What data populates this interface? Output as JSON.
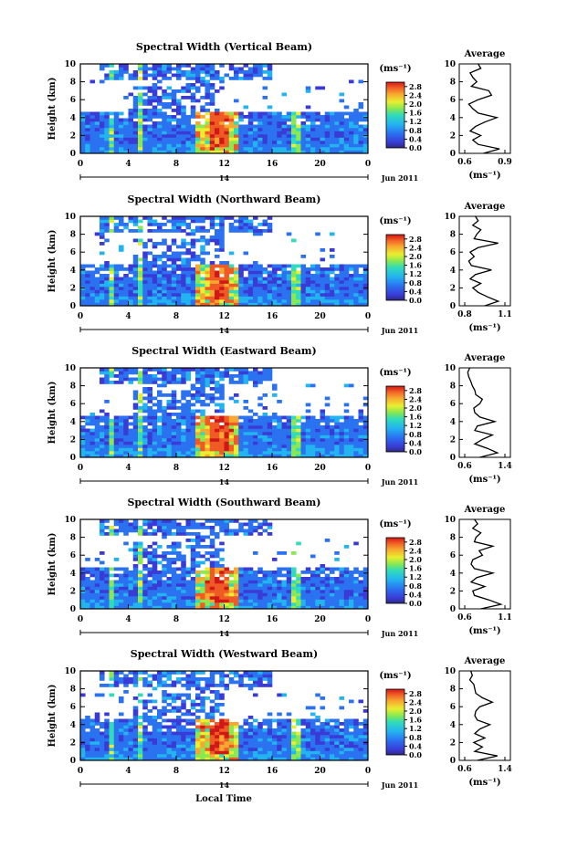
{
  "figure": {
    "x_axis_label": "Local Time",
    "date_label": "Jun 2011",
    "day_label": "14",
    "y_axis_label": "Height (km)",
    "colorbar_unit": "(ms⁻¹)",
    "average_title": "Average",
    "average_unit": "(ms⁻¹)"
  },
  "chart_data": [
    {
      "type": "heatmap",
      "title": "Spectral Width (Vertical Beam)",
      "xlabel": "Local Time",
      "ylabel": "Height (km)",
      "xlim": [
        0,
        24
      ],
      "ylim": [
        0,
        10
      ],
      "x_ticks": [
        "0",
        "4",
        "8",
        "12",
        "16",
        "20",
        "0"
      ],
      "y_ticks": [
        "0",
        "2",
        "4",
        "6",
        "8",
        "10"
      ],
      "colorbar": {
        "min": 0.0,
        "max": 3.0,
        "ticks": [
          "0.0",
          "0.4",
          "0.8",
          "1.2",
          "1.6",
          "2.0",
          "2.4",
          "2.8"
        ]
      },
      "average_profile": {
        "xlim": [
          0.6,
          0.9
        ],
        "x_ticks": [
          "0.6",
          "0.9"
        ],
        "heights": [
          0,
          0.5,
          1,
          1.5,
          2,
          2.5,
          3,
          3.5,
          4,
          4.5,
          5,
          5.5,
          6,
          6.5,
          7,
          7.5,
          8,
          8.5,
          9,
          9.5,
          10
        ],
        "values": [
          0.74,
          0.86,
          0.7,
          0.66,
          0.72,
          0.64,
          0.68,
          0.75,
          0.84,
          0.7,
          0.66,
          0.63,
          0.7,
          0.8,
          0.78,
          0.65,
          0.69,
          0.66,
          0.64,
          0.72,
          0.7
        ]
      }
    },
    {
      "type": "heatmap",
      "title": "Spectral Width (Northward Beam)",
      "xlabel": "Local Time",
      "ylabel": "Height (km)",
      "xlim": [
        0,
        24
      ],
      "ylim": [
        0,
        10
      ],
      "x_ticks": [
        "0",
        "4",
        "8",
        "12",
        "16",
        "20",
        "0"
      ],
      "y_ticks": [
        "0",
        "2",
        "4",
        "6",
        "8",
        "10"
      ],
      "colorbar": {
        "min": 0.0,
        "max": 3.0,
        "ticks": [
          "0.0",
          "0.4",
          "0.8",
          "1.2",
          "1.6",
          "2.0",
          "2.4",
          "2.8"
        ]
      },
      "average_profile": {
        "xlim": [
          0.8,
          1.1
        ],
        "x_ticks": [
          "0.8",
          "1.1"
        ],
        "heights": [
          0,
          0.5,
          1,
          1.5,
          2,
          2.5,
          3,
          3.5,
          4,
          4.5,
          5,
          5.5,
          6,
          6.5,
          7,
          7.5,
          8,
          8.5,
          9,
          9.5,
          10
        ],
        "values": [
          0.95,
          1.05,
          0.97,
          0.9,
          0.86,
          0.92,
          0.84,
          0.88,
          1.0,
          0.85,
          0.83,
          0.87,
          0.84,
          0.9,
          1.05,
          0.87,
          0.89,
          0.92,
          0.86,
          0.9,
          0.88
        ]
      }
    },
    {
      "type": "heatmap",
      "title": "Spectral Width (Eastward Beam)",
      "xlabel": "Local Time",
      "ylabel": "Height (km)",
      "xlim": [
        0,
        24
      ],
      "ylim": [
        0,
        10
      ],
      "x_ticks": [
        "0",
        "4",
        "8",
        "12",
        "16",
        "20",
        "0"
      ],
      "y_ticks": [
        "0",
        "2",
        "4",
        "6",
        "8",
        "10"
      ],
      "colorbar": {
        "min": 0.0,
        "max": 3.0,
        "ticks": [
          "0.0",
          "0.4",
          "0.8",
          "1.2",
          "1.6",
          "2.0",
          "2.4",
          "2.8"
        ]
      },
      "average_profile": {
        "xlim": [
          0.6,
          1.4
        ],
        "x_ticks": [
          "0.6",
          "1.4"
        ],
        "heights": [
          0,
          0.5,
          1,
          1.5,
          2,
          2.5,
          3,
          3.5,
          4,
          4.5,
          5,
          5.5,
          6,
          6.5,
          7,
          7.5,
          8,
          8.5,
          9,
          9.5,
          10
        ],
        "values": [
          0.9,
          1.25,
          1.05,
          0.8,
          0.95,
          1.15,
          0.8,
          0.85,
          1.2,
          0.9,
          0.8,
          0.78,
          0.9,
          0.95,
          0.82,
          0.8,
          0.75,
          0.72,
          0.68,
          0.66,
          0.7
        ]
      }
    },
    {
      "type": "heatmap",
      "title": "Spectral Width (Southward Beam)",
      "xlabel": "Local Time",
      "ylabel": "Height (km)",
      "xlim": [
        0,
        24
      ],
      "ylim": [
        0,
        10
      ],
      "x_ticks": [
        "0",
        "4",
        "8",
        "12",
        "16",
        "20",
        "0"
      ],
      "y_ticks": [
        "0",
        "2",
        "4",
        "6",
        "8",
        "10"
      ],
      "colorbar": {
        "min": 0.0,
        "max": 3.0,
        "ticks": [
          "0.0",
          "0.4",
          "0.8",
          "1.2",
          "1.6",
          "2.0",
          "2.4",
          "2.8"
        ]
      },
      "average_profile": {
        "xlim": [
          0.6,
          1.1
        ],
        "x_ticks": [
          "0.6",
          "1.1"
        ],
        "heights": [
          0,
          0.5,
          1,
          1.5,
          2,
          2.5,
          3,
          3.5,
          4,
          4.5,
          5,
          5.5,
          6,
          6.5,
          7,
          7.5,
          8,
          8.5,
          9,
          9.5,
          10
        ],
        "values": [
          0.8,
          1.05,
          0.9,
          0.72,
          0.7,
          0.85,
          0.68,
          0.75,
          0.95,
          0.72,
          0.68,
          0.7,
          0.82,
          0.78,
          0.95,
          0.72,
          0.74,
          0.8,
          0.7,
          0.76,
          0.72
        ]
      }
    },
    {
      "type": "heatmap",
      "title": "Spectral Width (Westward Beam)",
      "xlabel": "Local Time",
      "ylabel": "Height (km)",
      "xlim": [
        0,
        24
      ],
      "ylim": [
        0,
        10
      ],
      "x_ticks": [
        "0",
        "4",
        "8",
        "12",
        "16",
        "20",
        "0"
      ],
      "y_ticks": [
        "0",
        "2",
        "4",
        "6",
        "8",
        "10"
      ],
      "colorbar": {
        "min": 0.0,
        "max": 3.0,
        "ticks": [
          "0.0",
          "0.4",
          "0.8",
          "1.2",
          "1.6",
          "2.0",
          "2.4",
          "2.8"
        ]
      },
      "average_profile": {
        "xlim": [
          0.6,
          1.4
        ],
        "x_ticks": [
          "0.6",
          "1.4"
        ],
        "heights": [
          0,
          0.5,
          1,
          1.5,
          2,
          2.5,
          3,
          3.5,
          4,
          4.5,
          5,
          5.5,
          6,
          6.5,
          7,
          7.5,
          8,
          8.5,
          9,
          9.5,
          10
        ],
        "values": [
          0.85,
          1.25,
          0.8,
          0.95,
          0.78,
          1.0,
          0.8,
          0.9,
          1.1,
          0.85,
          0.8,
          0.82,
          0.9,
          1.15,
          0.95,
          0.82,
          0.8,
          0.78,
          0.7,
          0.75,
          0.72
        ]
      }
    }
  ]
}
